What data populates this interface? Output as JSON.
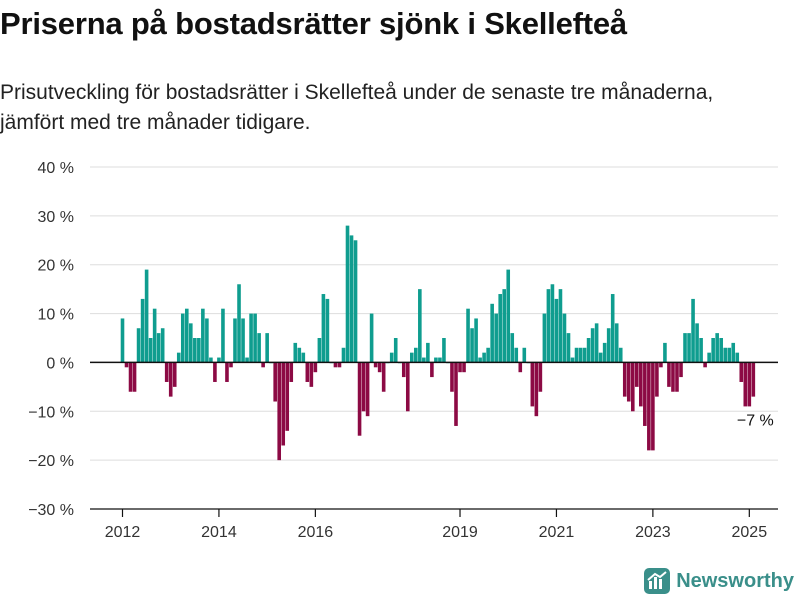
{
  "title": "Priserna på bostadsrätter sjönk i Skellefteå",
  "subtitle": "Prisutveckling för bostadsrätter i Skellefteå under de senaste tre månaderna, jämfört med tre månader tidigare.",
  "brand": "Newsworthy",
  "colors": {
    "positive": "#0f9d8f",
    "negative": "#8c0a44",
    "grid": "#dddddd",
    "axis": "#111111"
  },
  "chart_data": {
    "type": "bar",
    "x_label_unit": "month",
    "start": "2012-01",
    "ylim": [
      -30,
      40
    ],
    "yticks": [
      -30,
      -20,
      -10,
      0,
      10,
      20,
      30,
      40
    ],
    "ytick_labels": [
      "−30 %",
      "−20 %",
      "−10 %",
      "0 %",
      "10 %",
      "20 %",
      "30 %",
      "40 %"
    ],
    "xticks": [
      "2012",
      "2014",
      "2016",
      "2019",
      "2021",
      "2023",
      "2025"
    ],
    "xtick_positions": [
      "2012-01",
      "2014-01",
      "2016-01",
      "2019-01",
      "2021-01",
      "2023-01",
      "2025-01"
    ],
    "grid": true,
    "annotation": {
      "label": "−7 %",
      "at": "2025-02"
    },
    "series": [
      {
        "values": [
          9,
          -1,
          -6,
          -6,
          7,
          13,
          19,
          5,
          11,
          6,
          7,
          -4,
          -7,
          -5,
          2,
          10,
          11,
          8,
          5,
          5,
          11,
          9,
          1,
          -4,
          1,
          11,
          -4,
          -1,
          9,
          16,
          9,
          1,
          10,
          10,
          6,
          -1,
          6,
          0,
          -8,
          -20,
          -17,
          -14,
          -4,
          4,
          3,
          2,
          -4,
          -5,
          -2,
          5,
          14,
          13,
          0,
          -1,
          -1,
          3,
          28,
          26,
          25,
          -15,
          -10,
          -11,
          10,
          -1,
          -2,
          -6,
          0,
          2,
          5,
          0,
          -3,
          -10,
          2,
          3,
          15,
          1,
          4,
          -3,
          1,
          1,
          5,
          0,
          -6,
          -13,
          -2,
          -2,
          11,
          7,
          9,
          1,
          2,
          3,
          12,
          10,
          14,
          15,
          19,
          6,
          3,
          -2,
          3,
          0,
          -9,
          -11,
          -6,
          10,
          15,
          16,
          13,
          15,
          10,
          6,
          1,
          3,
          3,
          3,
          5,
          7,
          8,
          2,
          4,
          7,
          14,
          8,
          3,
          -7,
          -8,
          -10,
          -5,
          -9,
          -13,
          -18,
          -18,
          -7,
          -1,
          4,
          -5,
          -6,
          -6,
          -3,
          6,
          6,
          13,
          8,
          5,
          -1,
          2,
          5,
          6,
          5,
          3,
          3,
          4,
          2,
          -4,
          -9,
          -9,
          -7
        ]
      }
    ]
  }
}
